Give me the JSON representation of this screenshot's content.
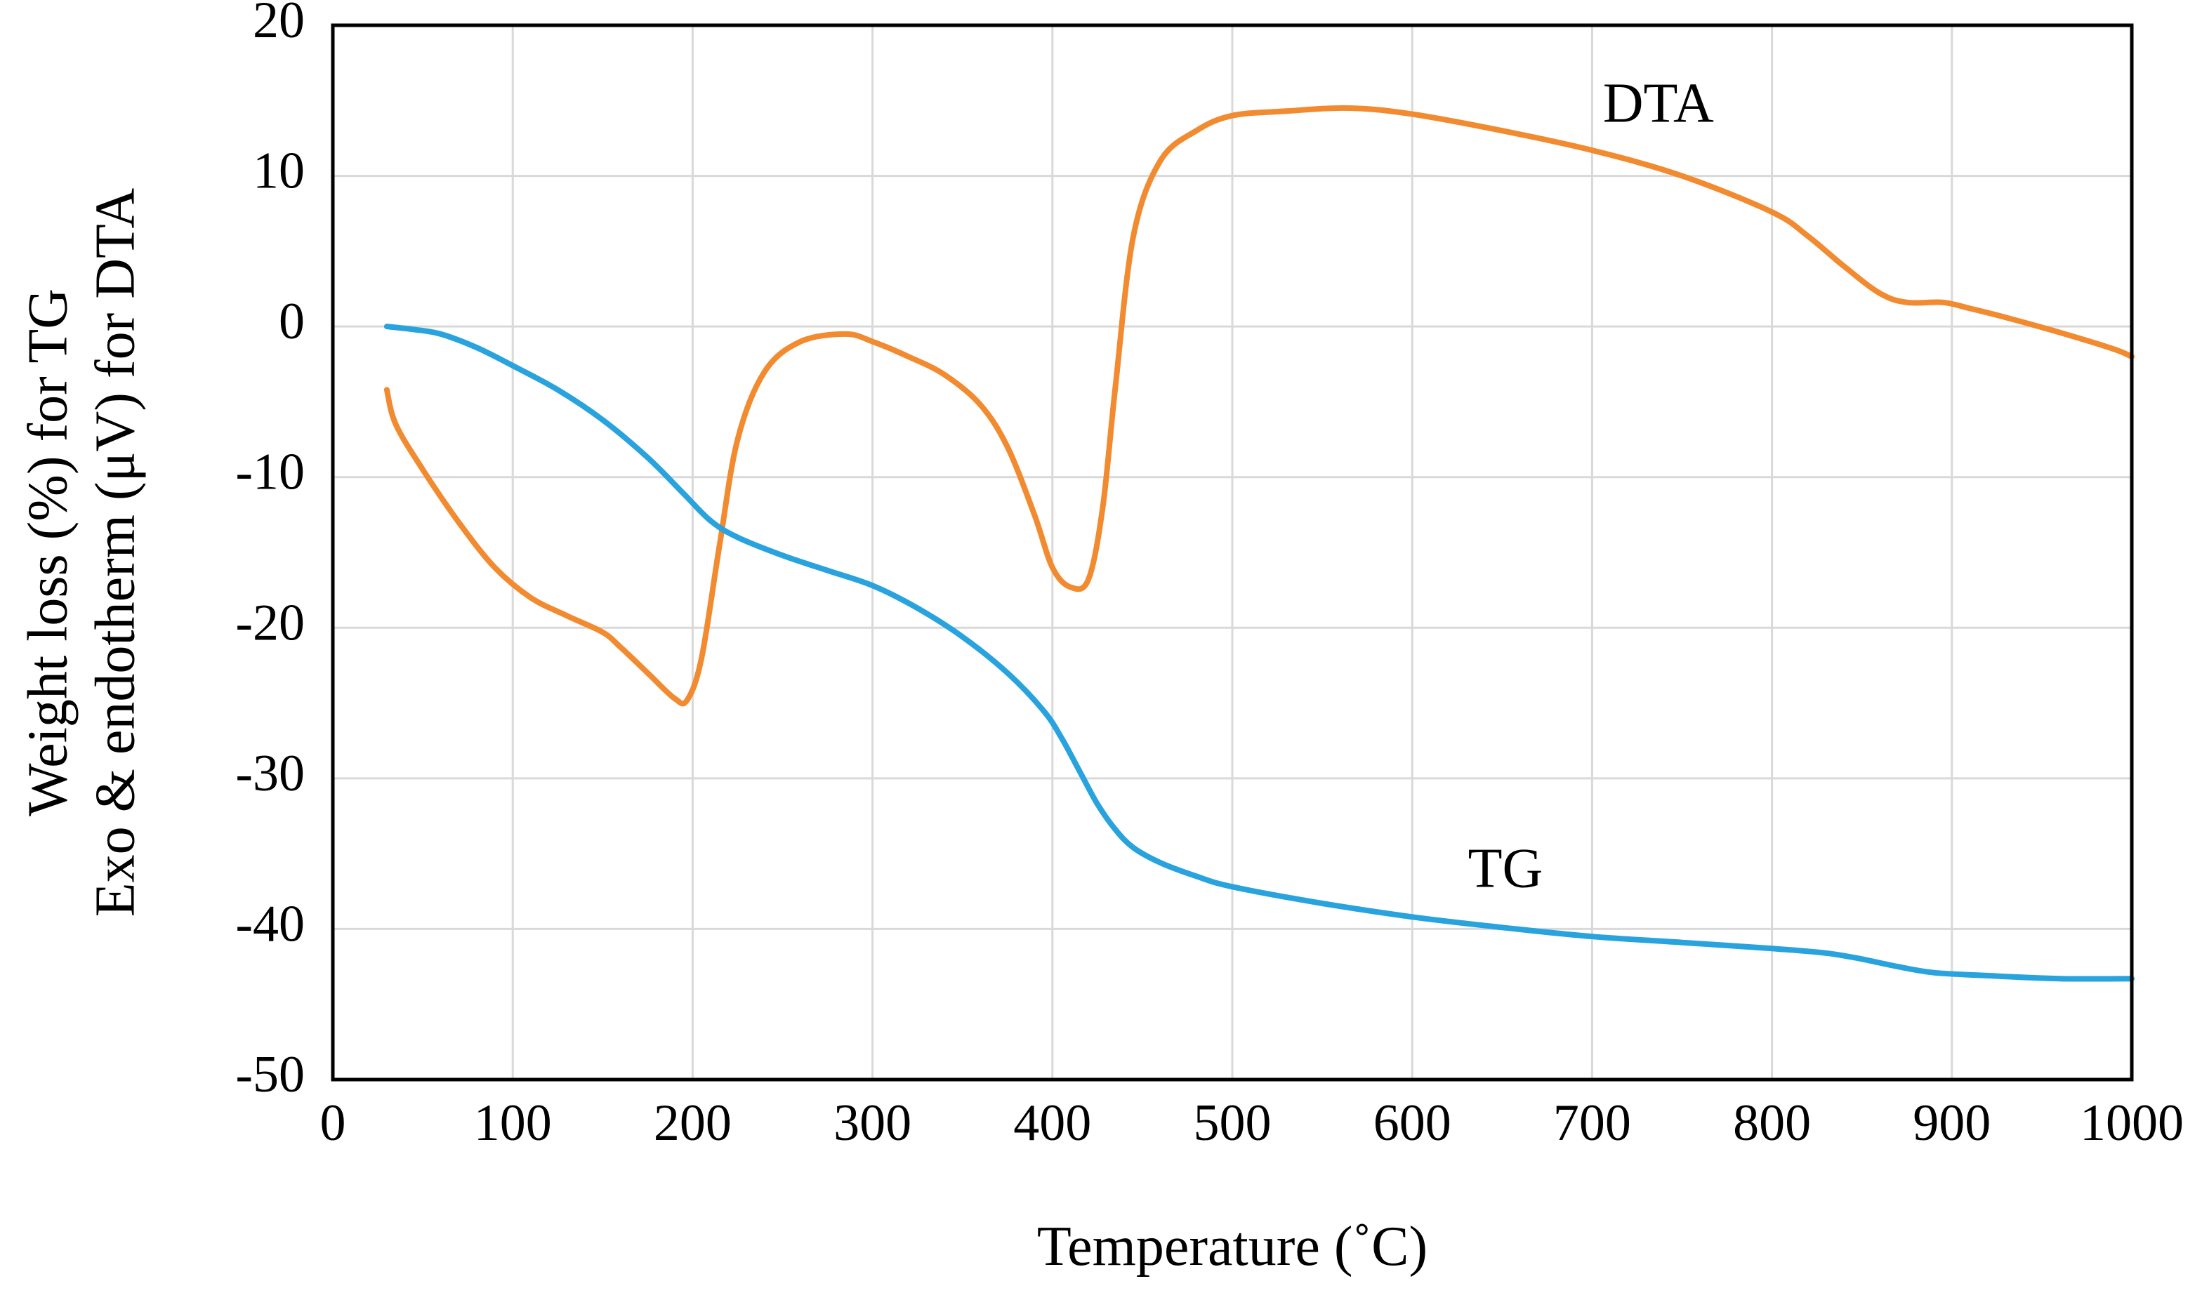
{
  "chart_data": {
    "type": "line",
    "title": "",
    "xlabel": "Temperature (˚C)",
    "ylabel_lines": [
      "Weight loss (%) for TG",
      "Exo & endotherm (μV) for DTA"
    ],
    "xlim": [
      0,
      1000
    ],
    "ylim": [
      -50,
      20
    ],
    "xticks": [
      0,
      100,
      200,
      300,
      400,
      500,
      600,
      700,
      800,
      900,
      1000
    ],
    "yticks": [
      20,
      10,
      0,
      -10,
      -20,
      -30,
      -40,
      -50
    ],
    "grid": true,
    "series": [
      {
        "name": "DTA",
        "color": "#f28a30",
        "label_at": [
          706,
          13.6
        ],
        "x": [
          30,
          35,
          50,
          70,
          90,
          110,
          130,
          150,
          160,
          175,
          190,
          197,
          205,
          215,
          225,
          240,
          260,
          285,
          300,
          320,
          340,
          360,
          375,
          390,
          400,
          410,
          420,
          428,
          435,
          445,
          460,
          480,
          500,
          530,
          565,
          600,
          650,
          700,
          750,
          800,
          820,
          840,
          860,
          875,
          895,
          910,
          930,
          960,
          990,
          1000
        ],
        "y": [
          -4.2,
          -6.5,
          -9.5,
          -13,
          -16,
          -18,
          -19.2,
          -20.3,
          -21.3,
          -23,
          -24.7,
          -24.8,
          -22,
          -14.5,
          -7.5,
          -3,
          -1,
          -0.5,
          -1,
          -2,
          -3.2,
          -5.2,
          -8,
          -12.5,
          -16,
          -17.3,
          -16.8,
          -12,
          -4,
          6,
          11,
          13,
          14,
          14.3,
          14.5,
          14.1,
          13,
          11.7,
          10,
          7.6,
          6,
          4,
          2.2,
          1.6,
          1.6,
          1.2,
          0.6,
          -0.4,
          -1.5,
          -2
        ]
      },
      {
        "name": "TG",
        "color": "#29a3dd",
        "label_at": [
          631,
          -37.2
        ],
        "x": [
          30,
          45,
          60,
          80,
          100,
          125,
          150,
          175,
          195,
          210,
          225,
          250,
          275,
          300,
          325,
          350,
          375,
          395,
          405,
          415,
          425,
          435,
          445,
          460,
          480,
          500,
          550,
          600,
          650,
          700,
          750,
          800,
          830,
          850,
          870,
          890,
          920,
          960,
          1000
        ],
        "y": [
          0,
          -0.2,
          -0.5,
          -1.4,
          -2.6,
          -4.2,
          -6.2,
          -8.7,
          -11.1,
          -12.9,
          -14,
          -15.2,
          -16.2,
          -17.2,
          -18.7,
          -20.6,
          -23,
          -25.5,
          -27.3,
          -29.5,
          -31.7,
          -33.4,
          -34.6,
          -35.6,
          -36.5,
          -37.2,
          -38.3,
          -39.2,
          -39.9,
          -40.5,
          -40.9,
          -41.3,
          -41.6,
          -42,
          -42.5,
          -42.9,
          -43.1,
          -43.3,
          -43.3
        ]
      }
    ]
  }
}
